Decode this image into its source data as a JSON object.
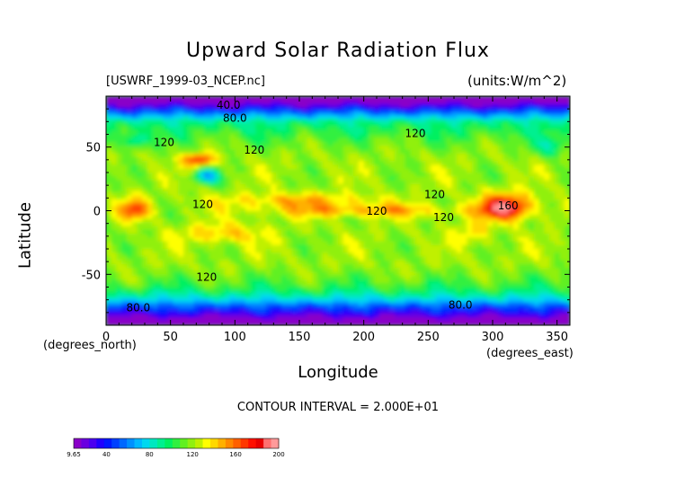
{
  "title": "Upward Solar Radiation Flux",
  "file_label": "[USWRF_1999-03_NCEP.nc]",
  "units_label": "(units:W/m^2)",
  "contour_interval": "CONTOUR INTERVAL = 2.000E+01",
  "chart_data": {
    "type": "heatmap",
    "title": "Upward Solar Radiation Flux",
    "xlabel": "Longitude",
    "ylabel": "Latitude",
    "x_unit_label": "(degrees_east)",
    "y_unit_label": "(degrees_north)",
    "xlim": [
      0,
      360
    ],
    "ylim": [
      -90,
      90
    ],
    "x_ticks": [
      0,
      50,
      100,
      150,
      200,
      250,
      300,
      350
    ],
    "y_ticks": [
      -50,
      0,
      50
    ],
    "contour_labels": [
      {
        "text": "40.0",
        "lon": 95,
        "lat": 80
      },
      {
        "text": "80.0",
        "lon": 100,
        "lat": 70
      },
      {
        "text": "120",
        "lon": 45,
        "lat": 51
      },
      {
        "text": "120",
        "lon": 115,
        "lat": 45
      },
      {
        "text": "120",
        "lon": 240,
        "lat": 58
      },
      {
        "text": "120",
        "lon": 75,
        "lat": 2
      },
      {
        "text": "120",
        "lon": 210,
        "lat": -3
      },
      {
        "text": "120",
        "lon": 255,
        "lat": 10
      },
      {
        "text": "120",
        "lon": 262,
        "lat": -8
      },
      {
        "text": "160",
        "lon": 312,
        "lat": 1
      },
      {
        "text": "120",
        "lon": 78,
        "lat": -55
      },
      {
        "text": "80.0",
        "lon": 25,
        "lat": -79
      },
      {
        "text": "80.0",
        "lon": 275,
        "lat": -77
      }
    ],
    "colorbar": {
      "min": 9.65,
      "max": 200,
      "tick_labels": [
        "9.65",
        "40",
        "80",
        "120",
        "160",
        "200"
      ],
      "tick_values": [
        9.65,
        40,
        80,
        120,
        160,
        200
      ],
      "colors": [
        "#8a00c8",
        "#6a00e0",
        "#4b00f0",
        "#2000ff",
        "#0018ff",
        "#0040ff",
        "#0068ff",
        "#0090ff",
        "#00b8ff",
        "#00d8f0",
        "#00e8c0",
        "#00f090",
        "#00f060",
        "#30f040",
        "#60f020",
        "#90f010",
        "#c0f000",
        "#ffff00",
        "#ffd800",
        "#ffb000",
        "#ff8800",
        "#ff6000",
        "#ff3800",
        "#ff1000",
        "#e80000",
        "#ff7070",
        "#ff9a9a"
      ]
    },
    "field": {
      "lon_range": [
        0,
        360
      ],
      "lat_range": [
        -90,
        90
      ],
      "description_levels": "contour levels every 20 W/m^2"
    }
  }
}
